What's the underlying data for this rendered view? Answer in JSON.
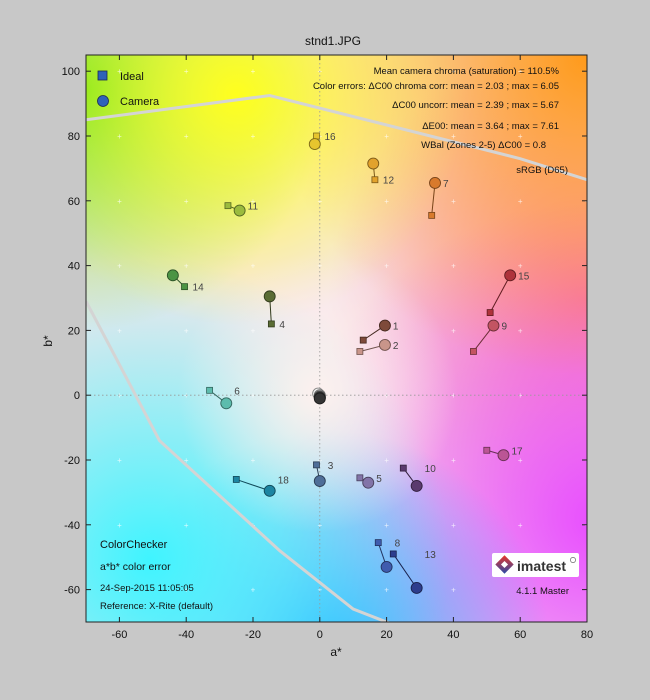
{
  "chart_data": {
    "type": "scatter",
    "title": "stnd1.JPG",
    "xlabel": "a*",
    "ylabel": "b*",
    "xlim": [
      -70,
      80
    ],
    "ylim": [
      -70,
      105
    ],
    "xticks": [
      -60,
      -40,
      -20,
      0,
      20,
      40,
      60,
      80
    ],
    "yticks": [
      -60,
      -40,
      -20,
      0,
      20,
      40,
      60,
      80,
      100
    ],
    "legend": {
      "position": "top-left",
      "ideal": "Ideal",
      "camera": "Camera"
    },
    "stats": [
      "Mean camera chroma (saturation) = 110.5%",
      "Color errors:  ΔC00 chroma corr: mean = 2.03 ; max = 6.05",
      "ΔC00 uncorr: mean = 2.39 ; max = 5.67",
      "ΔE00: mean = 3.64 ; max = 7.61",
      "WBal (Zones 2-5)  ΔC00 = 0.8"
    ],
    "gamut_label": "sRGB (D65)",
    "info": {
      "name": "ColorChecker",
      "desc": "a*b* color error",
      "date": "24-Sep-2015 11:05:05",
      "ref": "Reference: X-Rite (default)",
      "logo": "imatest",
      "version": "4.1.1 Master"
    },
    "patches": [
      {
        "id": "1",
        "ideal": [
          13,
          17
        ],
        "camera": [
          19.5,
          21.5
        ],
        "color": "#7e4a3a"
      },
      {
        "id": "2",
        "ideal": [
          12,
          13.5
        ],
        "camera": [
          19.5,
          15.5
        ],
        "color": "#c9958a"
      },
      {
        "id": "3",
        "ideal": [
          -1,
          -21.5
        ],
        "camera": [
          0,
          -26.5
        ],
        "color": "#4f6e98"
      },
      {
        "id": "4",
        "ideal": [
          -14.5,
          22
        ],
        "camera": [
          -15,
          30.5
        ],
        "color": "#5a6c34"
      },
      {
        "id": "5",
        "ideal": [
          12,
          -25.5
        ],
        "camera": [
          14.5,
          -27
        ],
        "color": "#8274a8"
      },
      {
        "id": "6",
        "ideal": [
          -33,
          1.5
        ],
        "camera": [
          -28,
          -2.5
        ],
        "color": "#5dbcad"
      },
      {
        "id": "7",
        "ideal": [
          33.5,
          55.5
        ],
        "camera": [
          34.5,
          65.5
        ],
        "color": "#d87a2c"
      },
      {
        "id": "8",
        "ideal": [
          17.5,
          -45.5
        ],
        "camera": [
          20,
          -53
        ],
        "color": "#3f5cae"
      },
      {
        "id": "9",
        "ideal": [
          46,
          13.5
        ],
        "camera": [
          52,
          21.5
        ],
        "color": "#c35462"
      },
      {
        "id": "10",
        "ideal": [
          25,
          -22.5
        ],
        "camera": [
          29,
          -28
        ],
        "color": "#5a3a6e"
      },
      {
        "id": "11",
        "ideal": [
          -27.5,
          58.5
        ],
        "camera": [
          -24,
          57
        ],
        "color": "#9bbb3e"
      },
      {
        "id": "12",
        "ideal": [
          16.5,
          66.5
        ],
        "camera": [
          16,
          71.5
        ],
        "color": "#e2a22c"
      },
      {
        "id": "13",
        "ideal": [
          22,
          -49
        ],
        "camera": [
          29,
          -59.5
        ],
        "color": "#2d3d8d"
      },
      {
        "id": "14",
        "ideal": [
          -40.5,
          33.5
        ],
        "camera": [
          -44,
          37
        ],
        "color": "#4c9444"
      },
      {
        "id": "15",
        "ideal": [
          51,
          25.5
        ],
        "camera": [
          57,
          37
        ],
        "color": "#ae333b"
      },
      {
        "id": "16",
        "ideal": [
          -1,
          80
        ],
        "camera": [
          -1.5,
          77.5
        ],
        "color": "#e7c52e"
      },
      {
        "id": "17",
        "ideal": [
          50,
          -17
        ],
        "camera": [
          55,
          -18.5
        ],
        "color": "#bb5595"
      },
      {
        "id": "18",
        "ideal": [
          -25,
          -26
        ],
        "camera": [
          -15,
          -29.5
        ],
        "color": "#1d85a2"
      },
      {
        "id": "19",
        "ideal": [
          -0.5,
          1
        ],
        "camera": [
          -0.5,
          0.5
        ],
        "color": "#f3f3f2"
      },
      {
        "id": "20",
        "ideal": [
          0,
          0
        ],
        "camera": [
          0,
          0
        ],
        "color": "#c8c8c8"
      },
      {
        "id": "21",
        "ideal": [
          0,
          -0.3
        ],
        "camera": [
          0,
          -0.4
        ],
        "color": "#a0a0a0"
      },
      {
        "id": "22",
        "ideal": [
          0,
          -0.5
        ],
        "camera": [
          0,
          -0.6
        ],
        "color": "#7a7a7a"
      },
      {
        "id": "23",
        "ideal": [
          0,
          -0.7
        ],
        "camera": [
          0,
          -0.8
        ],
        "color": "#555555"
      },
      {
        "id": "24",
        "ideal": [
          0,
          -0.9
        ],
        "camera": [
          0,
          -1
        ],
        "color": "#343434"
      }
    ],
    "gamut_boundary": [
      [
        -70,
        85
      ],
      [
        -15,
        92.5
      ],
      [
        60,
        73
      ],
      [
        80,
        66.5
      ]
    ],
    "gamut_boundary2": [
      [
        -70,
        29
      ],
      [
        -48,
        -14
      ],
      [
        -12,
        -48
      ],
      [
        10,
        -66
      ],
      [
        25,
        -72
      ]
    ]
  }
}
